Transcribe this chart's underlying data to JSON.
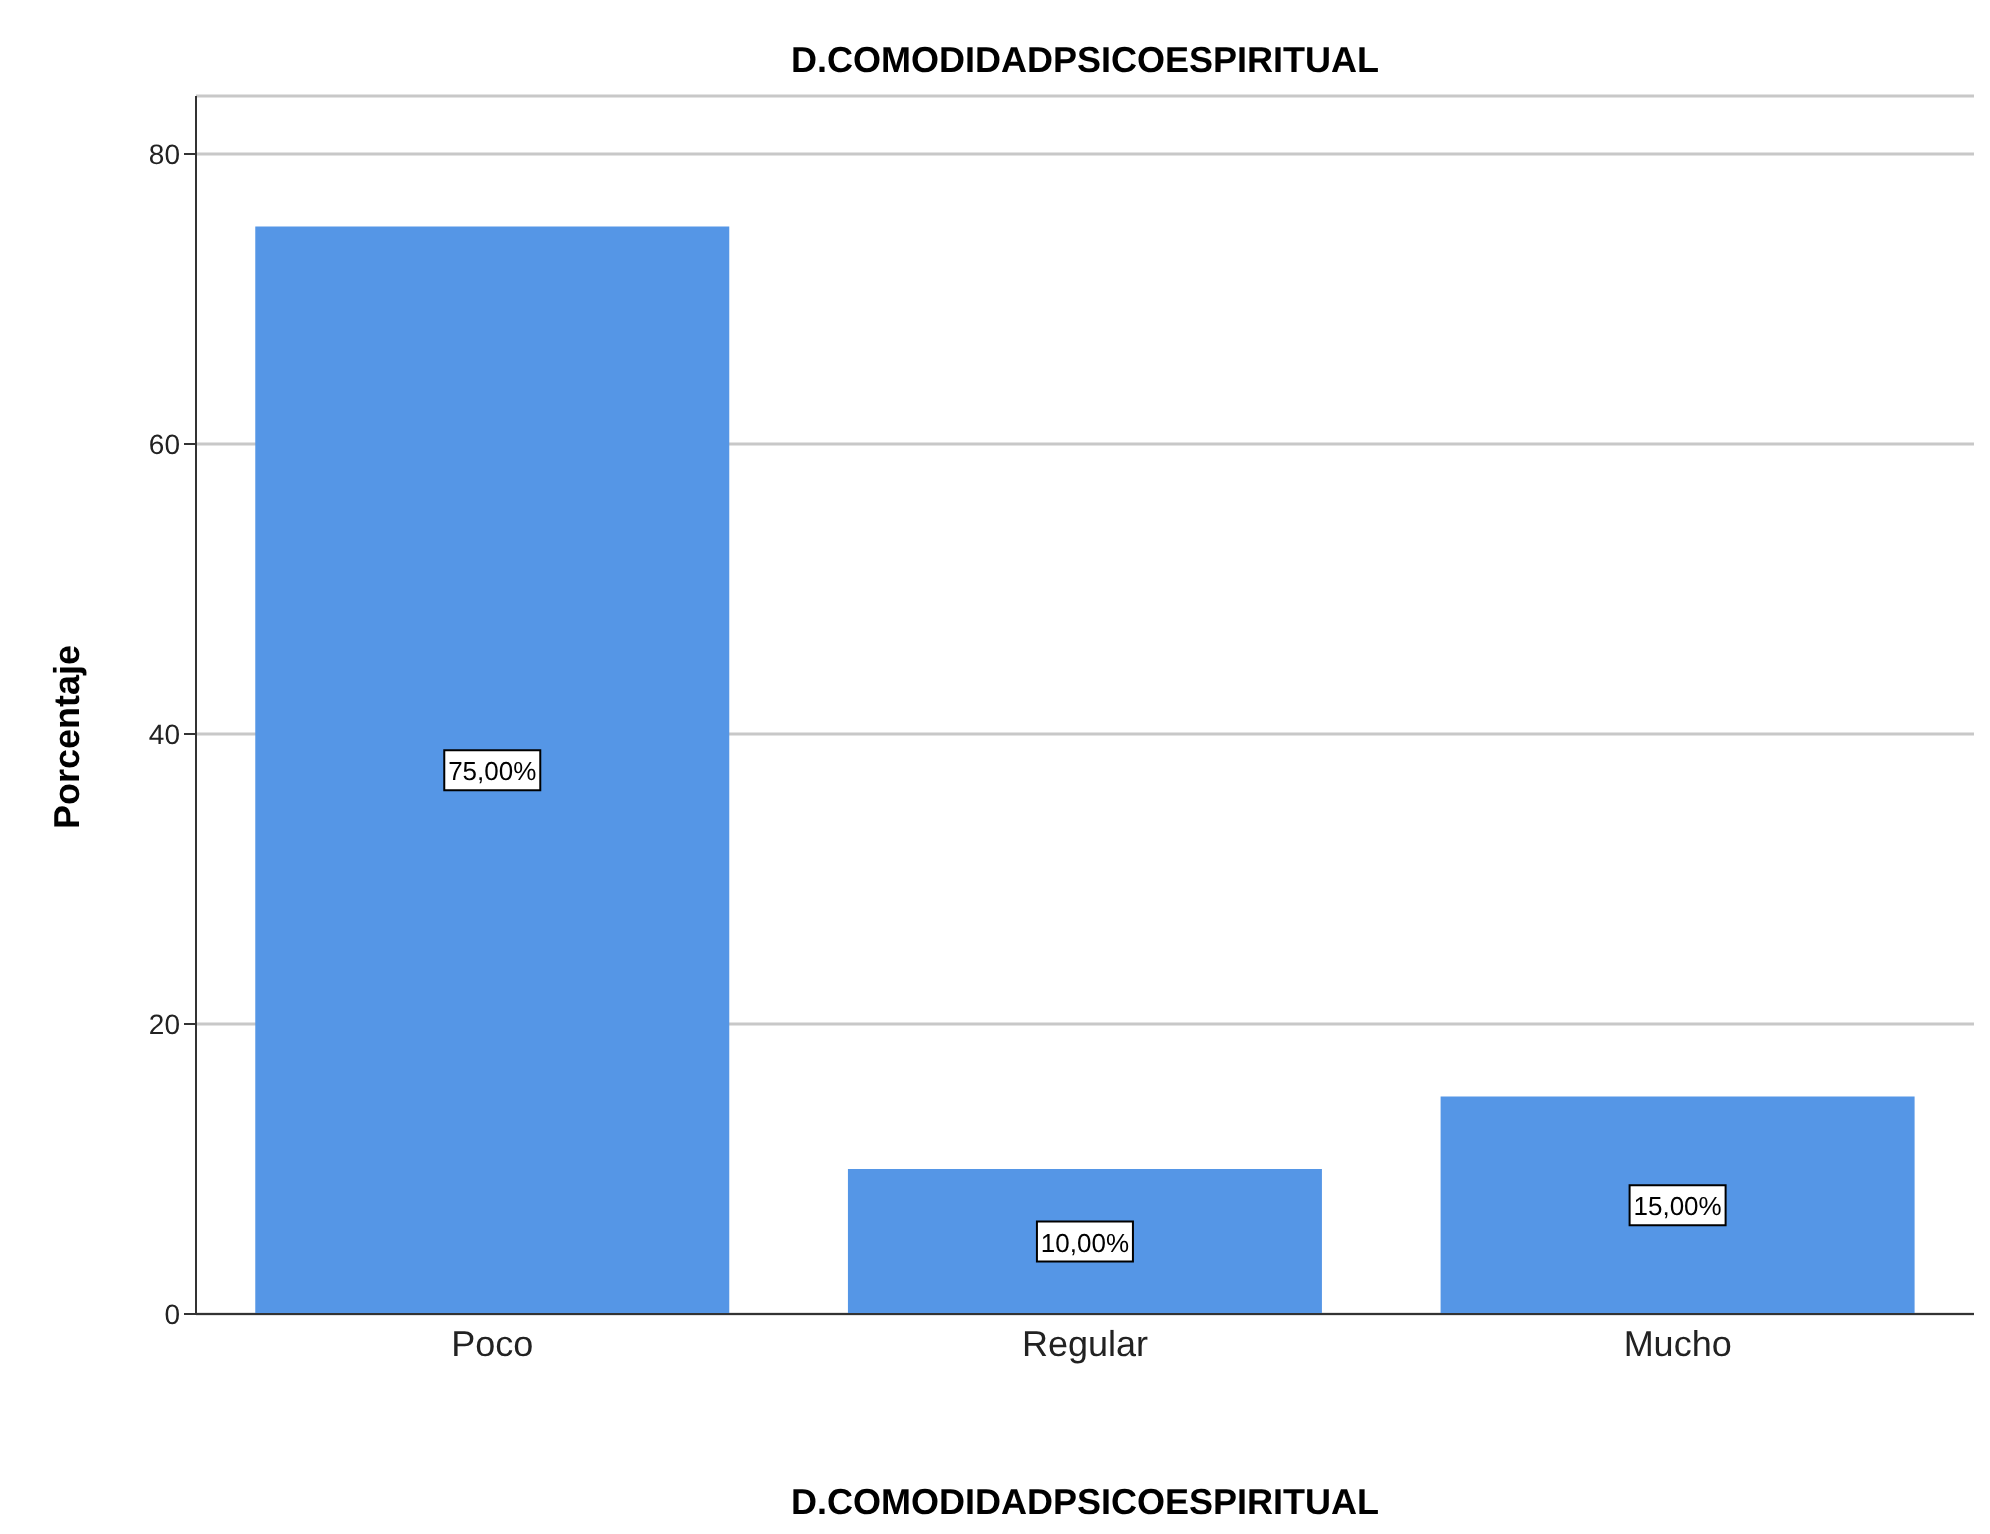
{
  "chart_data": {
    "type": "bar",
    "title": "D.COMODIDADPSICOESPIRITUAL",
    "xlabel": "D.COMODIDADPSICOESPIRITUAL",
    "ylabel": "Porcentaje",
    "categories": [
      "Poco",
      "Regular",
      "Mucho"
    ],
    "values": [
      75,
      10,
      15
    ],
    "value_labels": [
      "75,00%",
      "10,00%",
      "15,00%"
    ],
    "color": "#5596e6",
    "ylim": [
      0,
      84
    ],
    "yticks": [
      0,
      20,
      40,
      60,
      80
    ],
    "grid": "y"
  }
}
